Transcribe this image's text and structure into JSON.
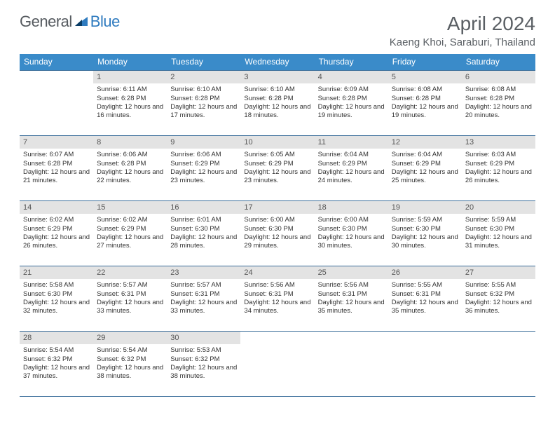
{
  "brand": {
    "part1": "General",
    "part2": "Blue"
  },
  "title": "April 2024",
  "location": "Kaeng Khoi, Saraburi, Thailand",
  "colors": {
    "header_bg": "#3a8bc9",
    "header_text": "#ffffff",
    "daynum_bg": "#e3e3e3",
    "border": "#3a6d9a",
    "title_text": "#5a5f64",
    "logo_gray": "#555a5f",
    "logo_blue": "#2f7bbf"
  },
  "weekdays": [
    "Sunday",
    "Monday",
    "Tuesday",
    "Wednesday",
    "Thursday",
    "Friday",
    "Saturday"
  ],
  "first_weekday_index": 1,
  "days": [
    {
      "n": 1,
      "sunrise": "6:11 AM",
      "sunset": "6:28 PM",
      "daylight": "12 hours and 16 minutes."
    },
    {
      "n": 2,
      "sunrise": "6:10 AM",
      "sunset": "6:28 PM",
      "daylight": "12 hours and 17 minutes."
    },
    {
      "n": 3,
      "sunrise": "6:10 AM",
      "sunset": "6:28 PM",
      "daylight": "12 hours and 18 minutes."
    },
    {
      "n": 4,
      "sunrise": "6:09 AM",
      "sunset": "6:28 PM",
      "daylight": "12 hours and 19 minutes."
    },
    {
      "n": 5,
      "sunrise": "6:08 AM",
      "sunset": "6:28 PM",
      "daylight": "12 hours and 19 minutes."
    },
    {
      "n": 6,
      "sunrise": "6:08 AM",
      "sunset": "6:28 PM",
      "daylight": "12 hours and 20 minutes."
    },
    {
      "n": 7,
      "sunrise": "6:07 AM",
      "sunset": "6:28 PM",
      "daylight": "12 hours and 21 minutes."
    },
    {
      "n": 8,
      "sunrise": "6:06 AM",
      "sunset": "6:28 PM",
      "daylight": "12 hours and 22 minutes."
    },
    {
      "n": 9,
      "sunrise": "6:06 AM",
      "sunset": "6:29 PM",
      "daylight": "12 hours and 23 minutes."
    },
    {
      "n": 10,
      "sunrise": "6:05 AM",
      "sunset": "6:29 PM",
      "daylight": "12 hours and 23 minutes."
    },
    {
      "n": 11,
      "sunrise": "6:04 AM",
      "sunset": "6:29 PM",
      "daylight": "12 hours and 24 minutes."
    },
    {
      "n": 12,
      "sunrise": "6:04 AM",
      "sunset": "6:29 PM",
      "daylight": "12 hours and 25 minutes."
    },
    {
      "n": 13,
      "sunrise": "6:03 AM",
      "sunset": "6:29 PM",
      "daylight": "12 hours and 26 minutes."
    },
    {
      "n": 14,
      "sunrise": "6:02 AM",
      "sunset": "6:29 PM",
      "daylight": "12 hours and 26 minutes."
    },
    {
      "n": 15,
      "sunrise": "6:02 AM",
      "sunset": "6:29 PM",
      "daylight": "12 hours and 27 minutes."
    },
    {
      "n": 16,
      "sunrise": "6:01 AM",
      "sunset": "6:30 PM",
      "daylight": "12 hours and 28 minutes."
    },
    {
      "n": 17,
      "sunrise": "6:00 AM",
      "sunset": "6:30 PM",
      "daylight": "12 hours and 29 minutes."
    },
    {
      "n": 18,
      "sunrise": "6:00 AM",
      "sunset": "6:30 PM",
      "daylight": "12 hours and 30 minutes."
    },
    {
      "n": 19,
      "sunrise": "5:59 AM",
      "sunset": "6:30 PM",
      "daylight": "12 hours and 30 minutes."
    },
    {
      "n": 20,
      "sunrise": "5:59 AM",
      "sunset": "6:30 PM",
      "daylight": "12 hours and 31 minutes."
    },
    {
      "n": 21,
      "sunrise": "5:58 AM",
      "sunset": "6:30 PM",
      "daylight": "12 hours and 32 minutes."
    },
    {
      "n": 22,
      "sunrise": "5:57 AM",
      "sunset": "6:31 PM",
      "daylight": "12 hours and 33 minutes."
    },
    {
      "n": 23,
      "sunrise": "5:57 AM",
      "sunset": "6:31 PM",
      "daylight": "12 hours and 33 minutes."
    },
    {
      "n": 24,
      "sunrise": "5:56 AM",
      "sunset": "6:31 PM",
      "daylight": "12 hours and 34 minutes."
    },
    {
      "n": 25,
      "sunrise": "5:56 AM",
      "sunset": "6:31 PM",
      "daylight": "12 hours and 35 minutes."
    },
    {
      "n": 26,
      "sunrise": "5:55 AM",
      "sunset": "6:31 PM",
      "daylight": "12 hours and 35 minutes."
    },
    {
      "n": 27,
      "sunrise": "5:55 AM",
      "sunset": "6:32 PM",
      "daylight": "12 hours and 36 minutes."
    },
    {
      "n": 28,
      "sunrise": "5:54 AM",
      "sunset": "6:32 PM",
      "daylight": "12 hours and 37 minutes."
    },
    {
      "n": 29,
      "sunrise": "5:54 AM",
      "sunset": "6:32 PM",
      "daylight": "12 hours and 38 minutes."
    },
    {
      "n": 30,
      "sunrise": "5:53 AM",
      "sunset": "6:32 PM",
      "daylight": "12 hours and 38 minutes."
    }
  ],
  "labels": {
    "sunrise": "Sunrise:",
    "sunset": "Sunset:",
    "daylight": "Daylight:"
  }
}
